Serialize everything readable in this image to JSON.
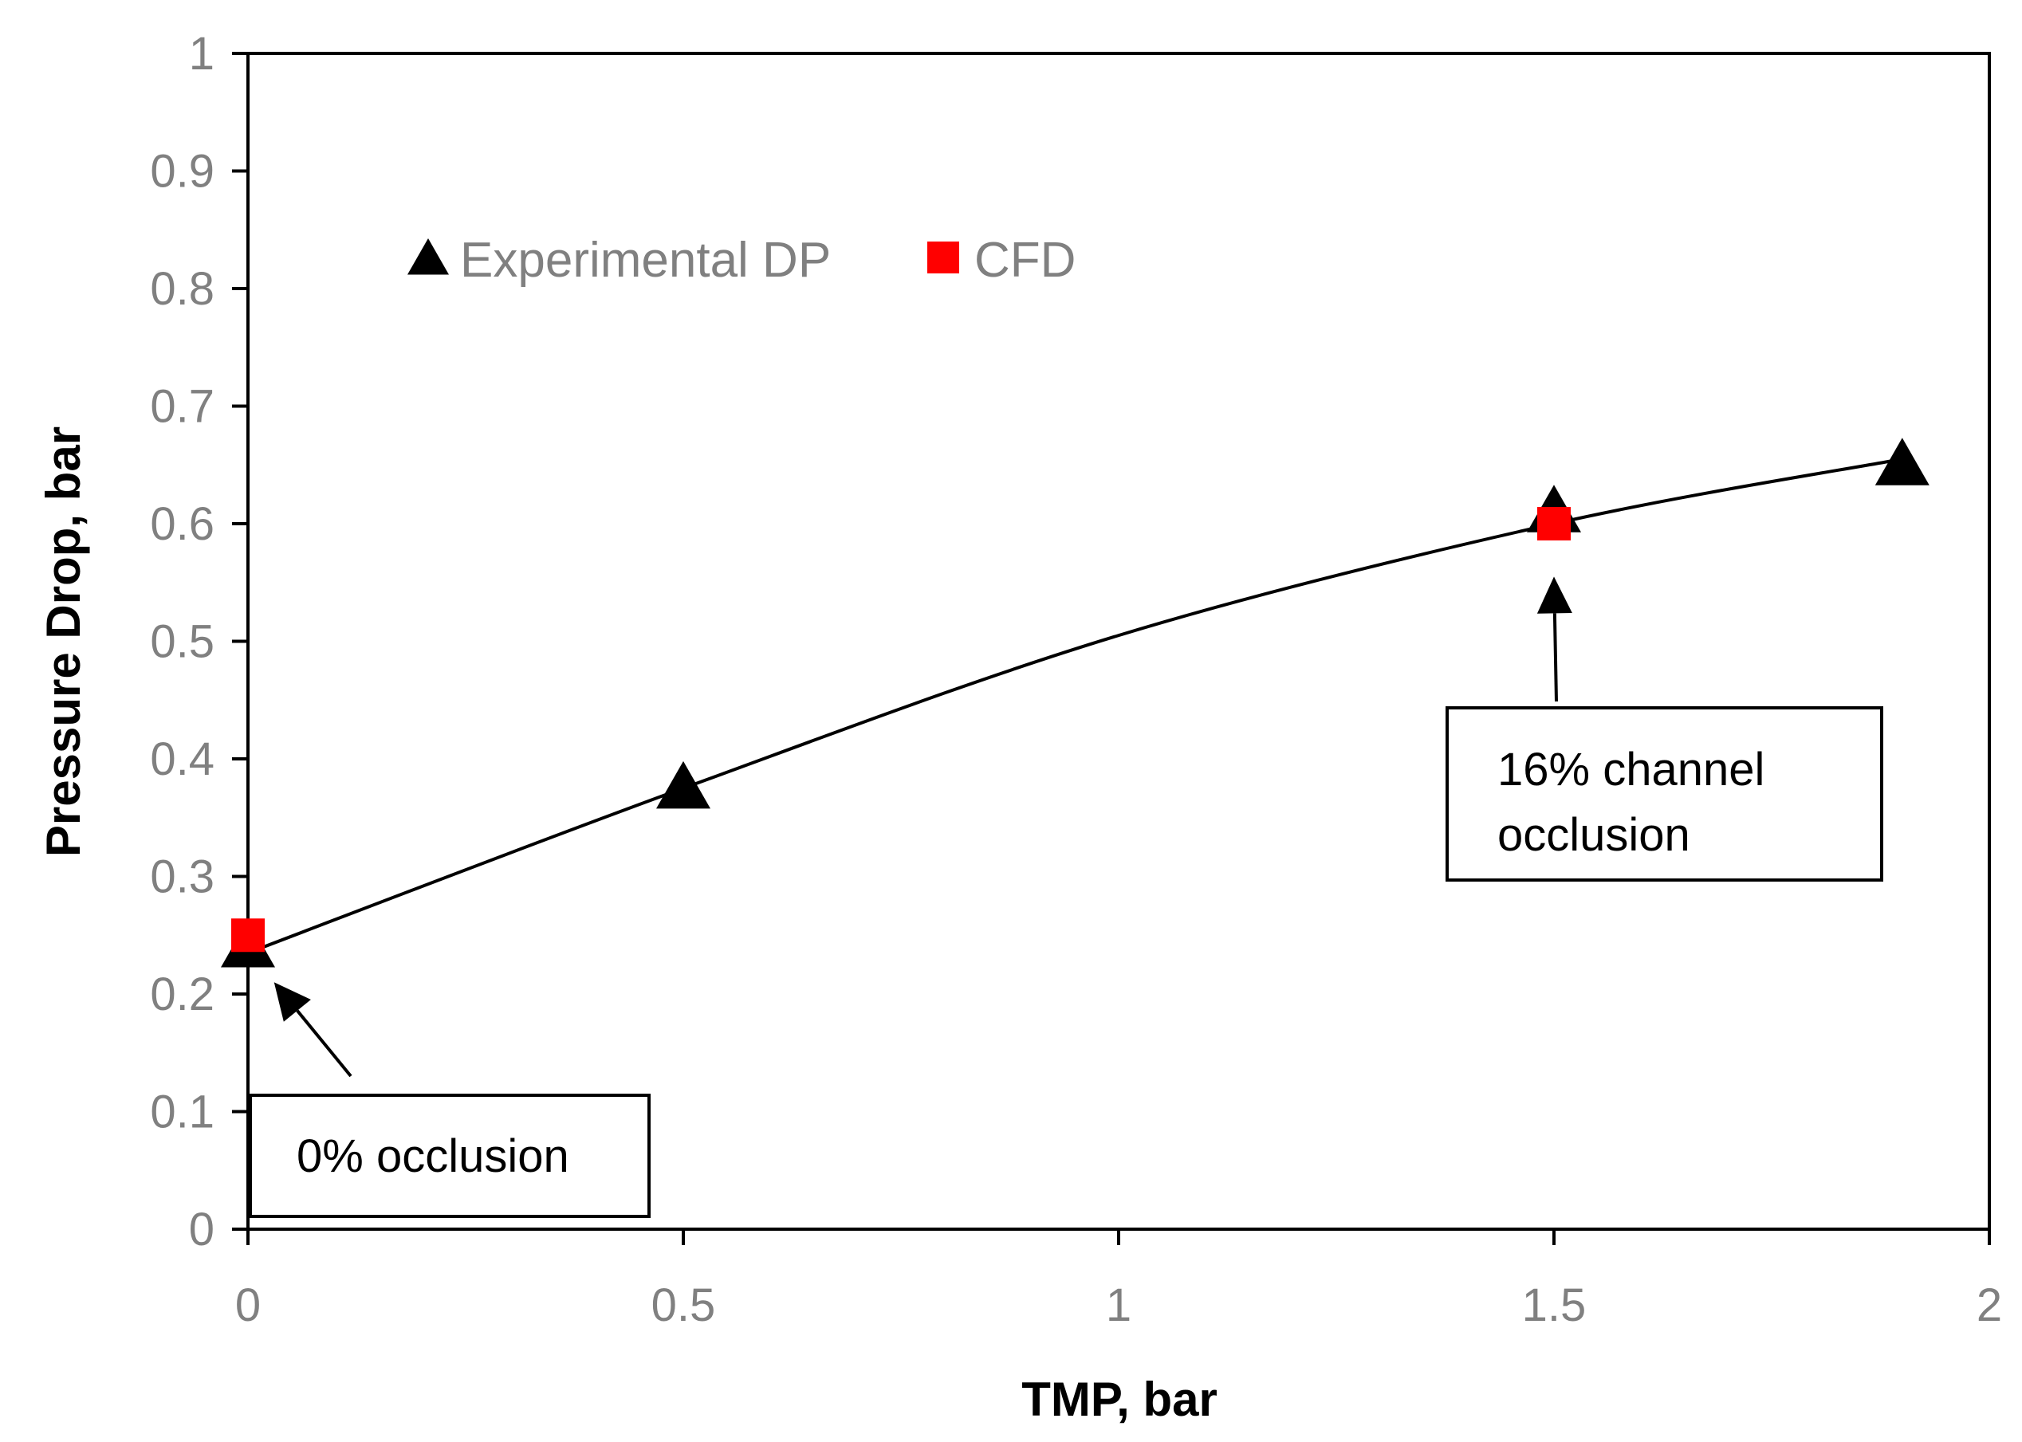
{
  "chart_data": {
    "type": "scatter",
    "xlabel": "TMP, bar",
    "ylabel": "Pressure Drop, bar",
    "xlim": [
      0,
      2
    ],
    "ylim": [
      0,
      1
    ],
    "x_ticks": [
      "0",
      "0.5",
      "1",
      "1.5",
      "2"
    ],
    "y_ticks": [
      "0",
      "0.1",
      "0.2",
      "0.3",
      "0.4",
      "0.5",
      "0.6",
      "0.7",
      "0.8",
      "0.9",
      "1"
    ],
    "grid": false,
    "legend_position": "top-left",
    "series": [
      {
        "name": "Experimental DP",
        "marker": "triangle",
        "color": "#000000",
        "points": [
          {
            "x": 0,
            "y": 0.24
          },
          {
            "x": 0.5,
            "y": 0.375
          },
          {
            "x": 1.5,
            "y": 0.61
          },
          {
            "x": 1.9,
            "y": 0.65
          }
        ]
      },
      {
        "name": "CFD",
        "marker": "square",
        "color": "#ff0000",
        "points": [
          {
            "x": 0,
            "y": 0.25
          },
          {
            "x": 1.5,
            "y": 0.6
          }
        ]
      }
    ],
    "trendline": {
      "type": "polynomial",
      "color": "#000000",
      "x_range": [
        0,
        1.9
      ],
      "points": [
        {
          "x": 0,
          "y": 0.235
        },
        {
          "x": 0.5,
          "y": 0.375
        },
        {
          "x": 1.0,
          "y": 0.505
        },
        {
          "x": 1.5,
          "y": 0.6
        },
        {
          "x": 1.9,
          "y": 0.655
        }
      ]
    },
    "annotations": [
      {
        "lines": [
          "0% occlusion"
        ],
        "target": {
          "x": 0.03,
          "y": 0.21
        }
      },
      {
        "lines": [
          "16% channel",
          "occlusion"
        ],
        "target": {
          "x": 1.5,
          "y": 0.555
        }
      }
    ]
  }
}
